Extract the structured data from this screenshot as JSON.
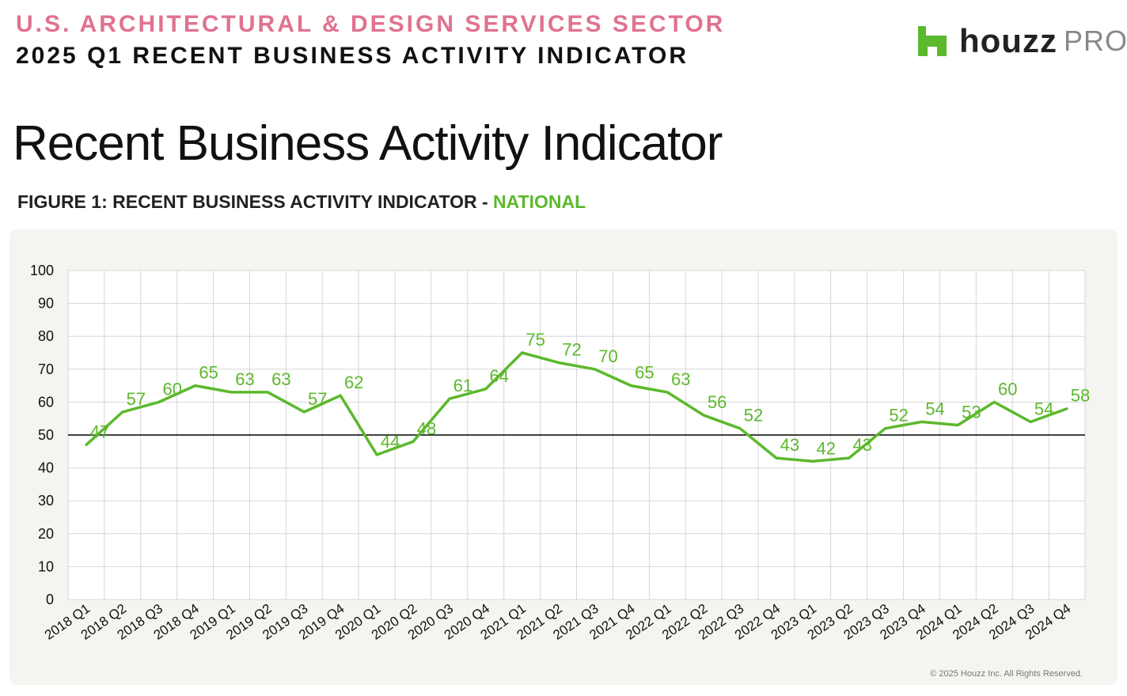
{
  "header": {
    "sector": "U.S. ARCHITECTURAL & DESIGN SERVICES SECTOR",
    "report": "2025 Q1 RECENT BUSINESS ACTIVITY INDICATOR",
    "logo_word": "houzz",
    "logo_pro": "PRO"
  },
  "page_title": "Recent Business Activity Indicator",
  "figure": {
    "label": "FIGURE 1: RECENT BUSINESS ACTIVITY INDICATOR - ",
    "region": "NATIONAL"
  },
  "copyright": "© 2025 Houzz Inc. All Rights Reserved.",
  "colors": {
    "line": "#5cb82d",
    "accent": "#e0728f",
    "reference": "#000000"
  },
  "chart_data": {
    "type": "line",
    "title": "Recent Business Activity Indicator - National",
    "categories": [
      "2018 Q1",
      "2018 Q2",
      "2018 Q3",
      "2018 Q4",
      "2019 Q1",
      "2019 Q2",
      "2019 Q3",
      "2019 Q4",
      "2020 Q1",
      "2020 Q2",
      "2020 Q3",
      "2020 Q4",
      "2021 Q1",
      "2021 Q2",
      "2021 Q3",
      "2021 Q4",
      "2022 Q1",
      "2022 Q2",
      "2022 Q3",
      "2022 Q4",
      "2023 Q1",
      "2023 Q2",
      "2023 Q3",
      "2023 Q4",
      "2024 Q1",
      "2024 Q2",
      "2024 Q3",
      "2024 Q4"
    ],
    "series": [
      {
        "name": "National",
        "values": [
          47,
          57,
          60,
          65,
          63,
          63,
          57,
          62,
          44,
          48,
          61,
          64,
          75,
          72,
          70,
          65,
          63,
          56,
          52,
          43,
          42,
          43,
          52,
          54,
          53,
          60,
          54,
          58
        ]
      }
    ],
    "ylim": [
      0,
      100
    ],
    "yticks": [
      0,
      10,
      20,
      30,
      40,
      50,
      60,
      70,
      80,
      90,
      100
    ],
    "reference_line": 50,
    "grid": true,
    "xlabel": "",
    "ylabel": ""
  }
}
